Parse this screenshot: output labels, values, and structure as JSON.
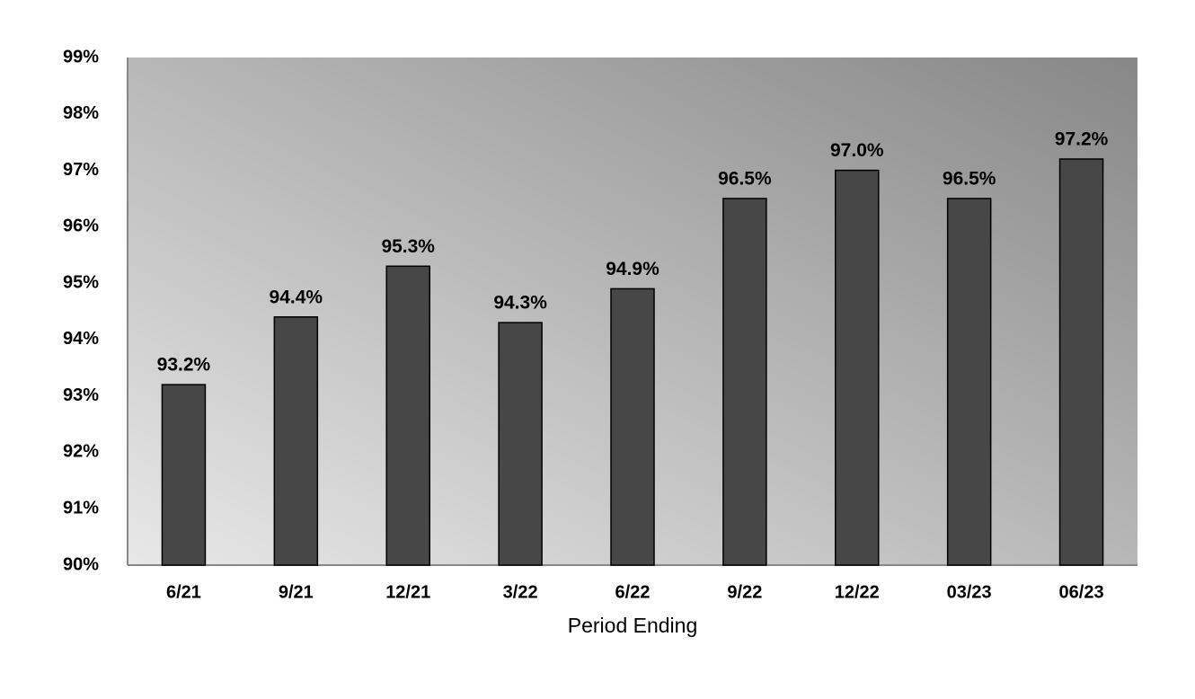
{
  "chart_data": {
    "type": "bar",
    "x_label": "Period Ending",
    "categories": [
      "6/21",
      "9/21",
      "12/21",
      "3/22",
      "6/22",
      "9/22",
      "12/22",
      "03/23",
      "06/23"
    ],
    "values": [
      93.2,
      94.4,
      95.3,
      94.3,
      94.9,
      96.5,
      97.0,
      96.5,
      97.2
    ],
    "value_labels": [
      "93.2%",
      "94.4%",
      "95.3%",
      "94.3%",
      "94.9%",
      "96.5%",
      "97.0%",
      "96.5%",
      "97.2%"
    ],
    "color": "#474747",
    "ylim": [
      90,
      99
    ],
    "yticks": [
      {
        "value": 90,
        "label": "90%"
      },
      {
        "value": 91,
        "label": "91%"
      },
      {
        "value": 92,
        "label": "92%"
      },
      {
        "value": 93,
        "label": "93%"
      },
      {
        "value": 94,
        "label": "94%"
      },
      {
        "value": 95,
        "label": "95%"
      },
      {
        "value": 96,
        "label": "96%"
      },
      {
        "value": 97,
        "label": "97%"
      },
      {
        "value": 98,
        "label": "98%"
      },
      {
        "value": 99,
        "label": "99%"
      }
    ],
    "grid": false
  }
}
